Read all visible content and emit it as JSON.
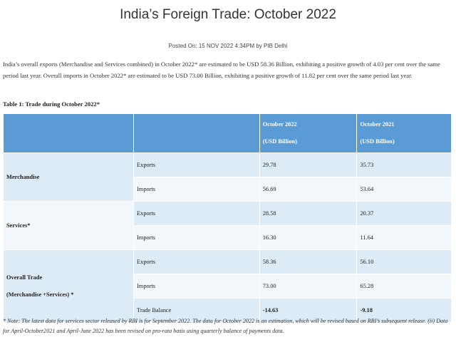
{
  "title": "India’s Foreign Trade: October 2022",
  "posted": "Posted On: 15 NOV 2022 4:34PM by PIB Delhi",
  "intro": "India’s overall exports (Merchandise and Services combined) in October 2022* are estimated to be USD 58.36 Billion, exhibiting a positive growth of 4.03 per cent over the same period last year. Overall imports in October 2022* are estimated to be USD 73.00 Billion, exhibiting a positive growth of 11.82 per cent over the same period last year.",
  "table": {
    "caption": "Table 1: Trade during October 2022*",
    "headers": {
      "col3_line1": "October 2022",
      "col3_line2": "(USD Billion)",
      "col4_line1": "October 2021",
      "col4_line2": "(USD Billion)"
    },
    "merchandise": {
      "label": "Merchandise",
      "exports": {
        "label": "Exports",
        "oct2022": "29.78",
        "oct2021": "35.73"
      },
      "imports": {
        "label": "Imports",
        "oct2022": "56.69",
        "oct2021": "53.64"
      }
    },
    "services": {
      "label": "Services*",
      "exports": {
        "label": "Exports",
        "oct2022": "28.58",
        "oct2021": "20.37"
      },
      "imports": {
        "label": "Imports",
        "oct2022": "16.30",
        "oct2021": "11.64"
      }
    },
    "overall": {
      "label_line1": "Overall Trade",
      "label_line2": "(Merchandise +Services) *",
      "exports": {
        "label": "Exports",
        "oct2022": "58.36",
        "oct2021": "56.10"
      },
      "imports": {
        "label": "Imports",
        "oct2022": "73.00",
        "oct2021": "65.28"
      },
      "balance": {
        "label": "Trade Balance",
        "oct2022": "-14.63",
        "oct2021": "-9.18"
      }
    }
  },
  "note": "* Note: The latest data for services sector released by RBI is for September 2022. The data for October 2022 is an estimation, which will be revised based on RBI’s subsequent release. (ii) Data for April-October2021 and April-June 2022 has been revised on pro-rata basis using quarterly balance of payments data."
}
